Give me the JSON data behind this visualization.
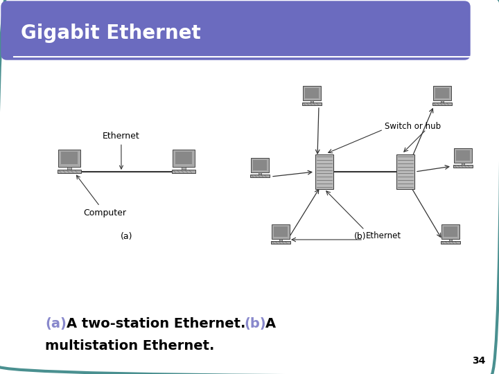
{
  "title": "Gigabit Ethernet",
  "title_bg_color": "#6B6BBF",
  "title_text_color": "#ffffff",
  "slide_bg_color": "#ffffff",
  "border_color": "#4A9090",
  "caption_a_color": "#8888cc",
  "caption_b_color": "#8888cc",
  "caption_text_color": "#000000",
  "page_number": "34",
  "label_ethernet_a": "Ethernet",
  "label_computer_a": "Computer",
  "label_switch": "Switch or hub",
  "label_ethernet_b": "Ethernet",
  "label_a": "(a)",
  "label_b": "(b)",
  "comp_color": "#aaaaaa",
  "comp_edge": "#444444",
  "screen_color": "#888888",
  "switch_color": "#bbbbbb",
  "line_color": "#333333"
}
